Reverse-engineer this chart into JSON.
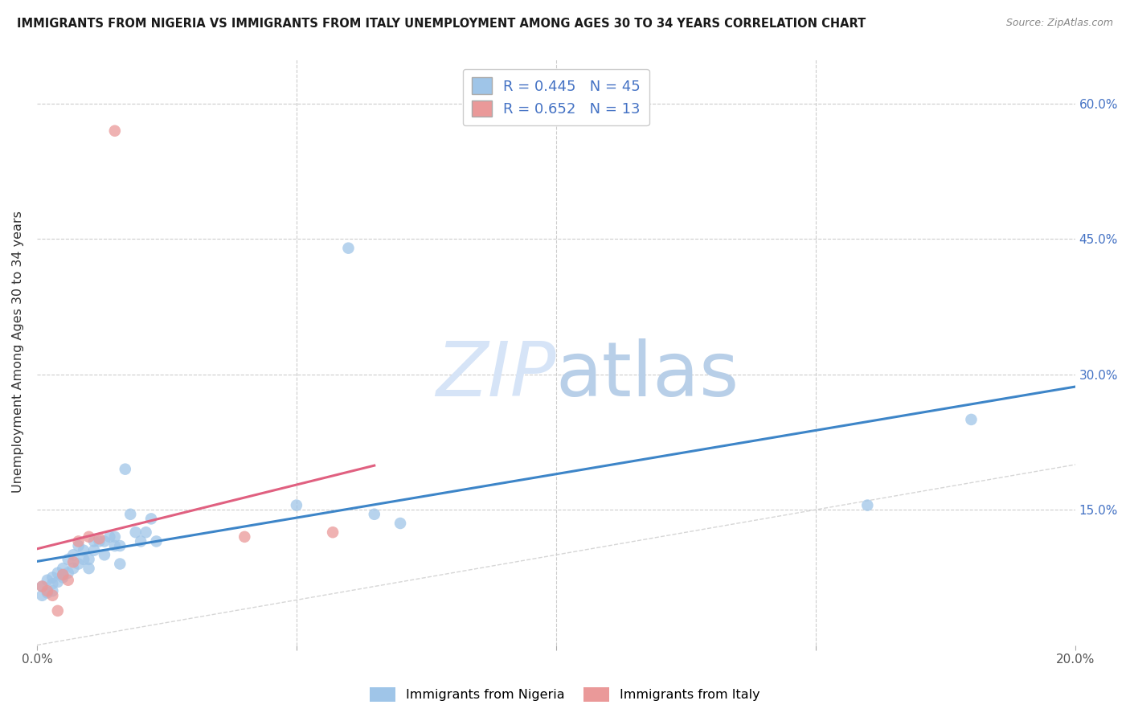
{
  "title": "IMMIGRANTS FROM NIGERIA VS IMMIGRANTS FROM ITALY UNEMPLOYMENT AMONG AGES 30 TO 34 YEARS CORRELATION CHART",
  "source": "Source: ZipAtlas.com",
  "ylabel": "Unemployment Among Ages 30 to 34 years",
  "xlim": [
    0,
    0.2
  ],
  "ylim": [
    0,
    0.65
  ],
  "nigeria_R": 0.445,
  "nigeria_N": 45,
  "italy_R": 0.652,
  "italy_N": 13,
  "nigeria_color": "#9fc5e8",
  "italy_color": "#ea9999",
  "nigeria_line_color": "#3d85c8",
  "italy_line_color": "#e06080",
  "ref_line_color": "#cccccc",
  "grid_color": "#cccccc",
  "watermark_color": "#d6e4f7",
  "legend_label_nigeria": "Immigrants from Nigeria",
  "legend_label_italy": "Immigrants from Italy",
  "nigeria_x": [
    0.001,
    0.001,
    0.002,
    0.002,
    0.003,
    0.003,
    0.003,
    0.004,
    0.004,
    0.005,
    0.005,
    0.005,
    0.006,
    0.006,
    0.007,
    0.007,
    0.008,
    0.008,
    0.009,
    0.009,
    0.01,
    0.01,
    0.011,
    0.011,
    0.012,
    0.013,
    0.013,
    0.014,
    0.015,
    0.015,
    0.016,
    0.016,
    0.017,
    0.018,
    0.019,
    0.02,
    0.021,
    0.022,
    0.023,
    0.05,
    0.06,
    0.065,
    0.07,
    0.16,
    0.18
  ],
  "nigeria_y": [
    0.055,
    0.065,
    0.058,
    0.072,
    0.06,
    0.068,
    0.075,
    0.07,
    0.08,
    0.075,
    0.085,
    0.078,
    0.08,
    0.095,
    0.085,
    0.1,
    0.09,
    0.11,
    0.095,
    0.105,
    0.095,
    0.085,
    0.105,
    0.115,
    0.115,
    0.115,
    0.1,
    0.12,
    0.11,
    0.12,
    0.11,
    0.09,
    0.195,
    0.145,
    0.125,
    0.115,
    0.125,
    0.14,
    0.115,
    0.155,
    0.44,
    0.145,
    0.135,
    0.155,
    0.25
  ],
  "italy_x": [
    0.001,
    0.002,
    0.003,
    0.004,
    0.005,
    0.006,
    0.007,
    0.008,
    0.01,
    0.012,
    0.015,
    0.04,
    0.057
  ],
  "italy_y": [
    0.065,
    0.06,
    0.055,
    0.038,
    0.078,
    0.072,
    0.092,
    0.115,
    0.12,
    0.118,
    0.57,
    0.12,
    0.125
  ]
}
